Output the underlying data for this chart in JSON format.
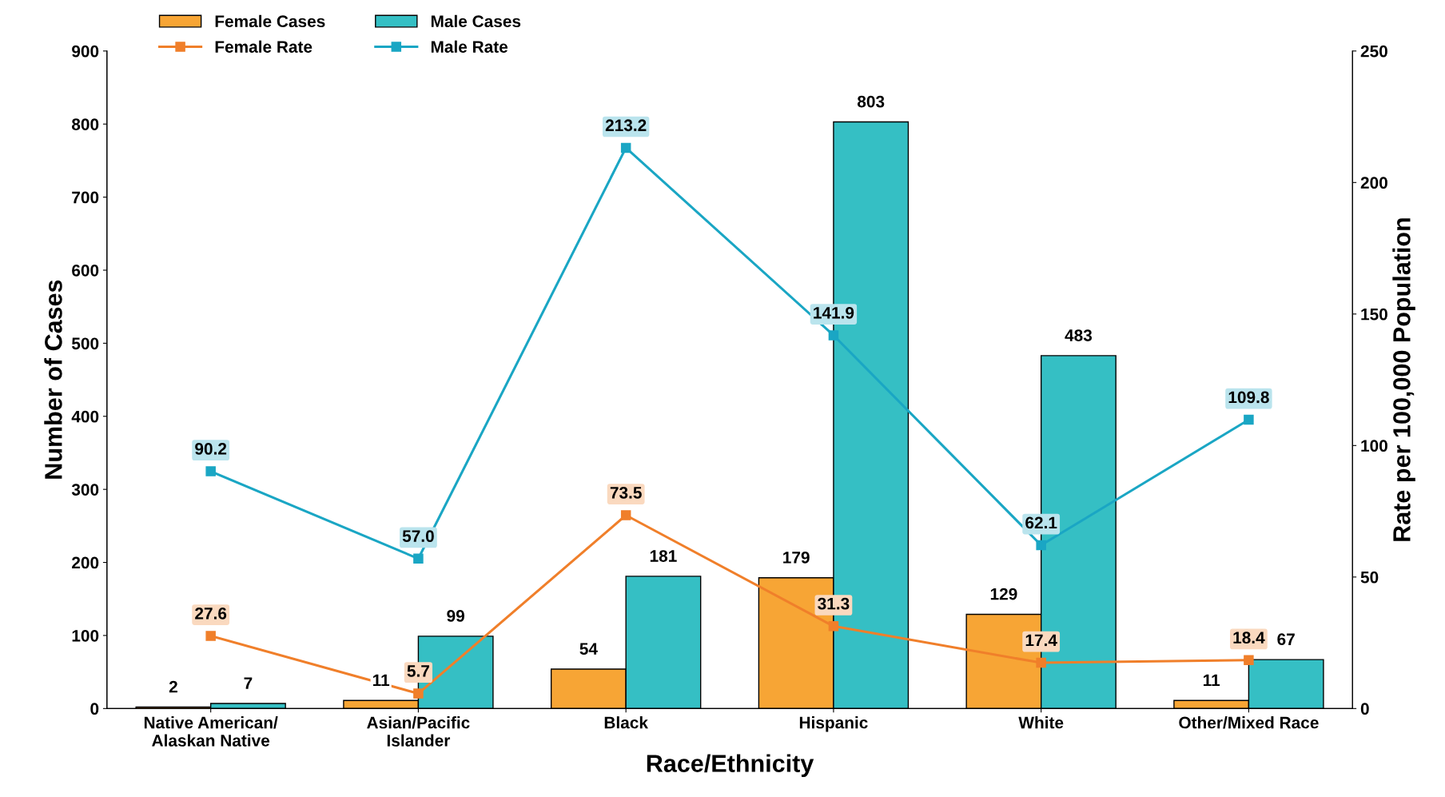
{
  "chart_data": {
    "type": "bar",
    "xlabel": "Race/Ethnicity",
    "ylabel": "Number of Cases",
    "y2label": "Rate per 100,000 Population",
    "categories": [
      "Native American/\nAlaskan Native",
      "Asian/Pacific\nIslander",
      "Black",
      "Hispanic",
      "White",
      "Other/Mixed Race"
    ],
    "series": [
      {
        "name": "Female Cases",
        "color": "#f7a535",
        "values": [
          2,
          11,
          54,
          179,
          129,
          11
        ]
      },
      {
        "name": "Male Cases",
        "color": "#35bfc4",
        "values": [
          7,
          99,
          181,
          803,
          483,
          67
        ]
      },
      {
        "name": "Female Rate",
        "type": "line",
        "axis": "y2",
        "color": "#f07f2a",
        "marker": "square",
        "values": [
          27.6,
          5.7,
          73.5,
          31.3,
          17.4,
          18.4
        ]
      },
      {
        "name": "Male Rate",
        "type": "line",
        "axis": "y2",
        "color": "#1aa6c4",
        "marker": "square",
        "values": [
          90.2,
          57.0,
          213.2,
          141.9,
          62.1,
          109.8
        ],
        "value_labels": [
          "90.2",
          "57.0",
          "213.2",
          "141.9",
          "62.1",
          "109.8"
        ]
      }
    ],
    "ylim": [
      0,
      900
    ],
    "yticks": [
      0,
      100,
      200,
      300,
      400,
      500,
      600,
      700,
      800,
      900
    ],
    "y2lim": [
      0,
      250
    ],
    "y2ticks": [
      0,
      50,
      100,
      150,
      200,
      250
    ],
    "data_labels": true,
    "grid": false,
    "legend": "top left"
  }
}
